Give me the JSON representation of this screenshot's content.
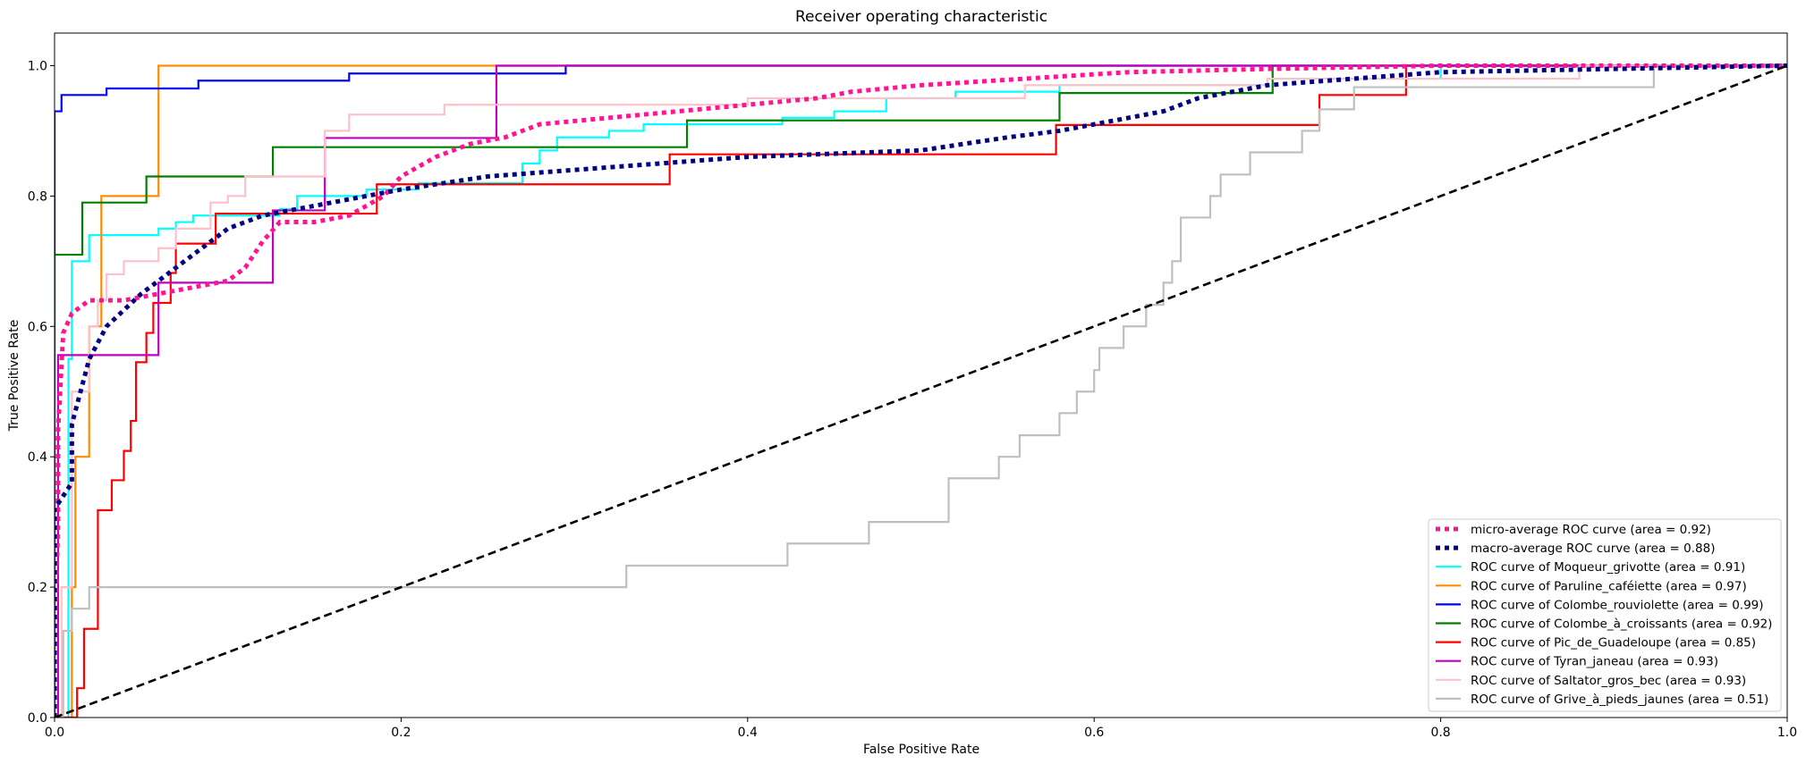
{
  "chart_data": {
    "type": "line",
    "title": "Receiver operating characteristic",
    "xlabel": "False Positive Rate",
    "ylabel": "True Positive Rate",
    "xlim": [
      0.0,
      1.0
    ],
    "ylim": [
      0.0,
      1.05
    ],
    "x_ticks": [
      "0.0",
      "0.2",
      "0.4",
      "0.6",
      "0.8",
      "1.0"
    ],
    "y_ticks": [
      "0.0",
      "0.2",
      "0.4",
      "0.6",
      "0.8",
      "1.0"
    ],
    "grid": false,
    "legend_position": "lower right",
    "series": [
      {
        "name": "micro-average ROC curve (area = 0.92)",
        "color": "#ff1493",
        "style": "dotted",
        "points": [
          [
            0,
            0
          ],
          [
            0,
            0.1
          ],
          [
            0.002,
            0.3
          ],
          [
            0.002,
            0.44
          ],
          [
            0.005,
            0.59
          ],
          [
            0.01,
            0.62
          ],
          [
            0.02,
            0.64
          ],
          [
            0.04,
            0.64
          ],
          [
            0.06,
            0.65
          ],
          [
            0.08,
            0.66
          ],
          [
            0.1,
            0.67
          ],
          [
            0.11,
            0.69
          ],
          [
            0.12,
            0.73
          ],
          [
            0.13,
            0.76
          ],
          [
            0.15,
            0.76
          ],
          [
            0.17,
            0.77
          ],
          [
            0.19,
            0.8
          ],
          [
            0.2,
            0.83
          ],
          [
            0.22,
            0.86
          ],
          [
            0.24,
            0.88
          ],
          [
            0.26,
            0.89
          ],
          [
            0.28,
            0.91
          ],
          [
            0.32,
            0.92
          ],
          [
            0.36,
            0.93
          ],
          [
            0.4,
            0.94
          ],
          [
            0.44,
            0.95
          ],
          [
            0.46,
            0.96
          ],
          [
            0.5,
            0.97
          ],
          [
            0.56,
            0.98
          ],
          [
            0.62,
            0.99
          ],
          [
            0.7,
            0.995
          ],
          [
            0.8,
            1.0
          ],
          [
            1.0,
            1.0
          ]
        ]
      },
      {
        "name": "macro-average ROC curve (area = 0.88)",
        "color": "#000080",
        "style": "dotted",
        "points": [
          [
            0,
            0
          ],
          [
            0,
            0.32
          ],
          [
            0.01,
            0.36
          ],
          [
            0.01,
            0.45
          ],
          [
            0.02,
            0.55
          ],
          [
            0.03,
            0.6
          ],
          [
            0.05,
            0.65
          ],
          [
            0.07,
            0.69
          ],
          [
            0.09,
            0.73
          ],
          [
            0.1,
            0.75
          ],
          [
            0.12,
            0.77
          ],
          [
            0.16,
            0.79
          ],
          [
            0.2,
            0.81
          ],
          [
            0.25,
            0.83
          ],
          [
            0.3,
            0.84
          ],
          [
            0.35,
            0.85
          ],
          [
            0.4,
            0.86
          ],
          [
            0.5,
            0.87
          ],
          [
            0.55,
            0.89
          ],
          [
            0.58,
            0.9
          ],
          [
            0.6,
            0.91
          ],
          [
            0.64,
            0.93
          ],
          [
            0.66,
            0.95
          ],
          [
            0.7,
            0.97
          ],
          [
            0.75,
            0.98
          ],
          [
            0.8,
            0.99
          ],
          [
            1.0,
            1.0
          ]
        ]
      },
      {
        "name": "ROC curve of Moqueur_grivotte (area = 0.91)",
        "color": "#00ffff",
        "style": "solid",
        "points": [
          [
            0,
            0
          ],
          [
            0.008,
            0
          ],
          [
            0.008,
            0.55
          ],
          [
            0.01,
            0.55
          ],
          [
            0.01,
            0.7
          ],
          [
            0.02,
            0.7
          ],
          [
            0.02,
            0.74
          ],
          [
            0.06,
            0.74
          ],
          [
            0.06,
            0.75
          ],
          [
            0.07,
            0.75
          ],
          [
            0.07,
            0.76
          ],
          [
            0.08,
            0.76
          ],
          [
            0.08,
            0.77
          ],
          [
            0.13,
            0.77
          ],
          [
            0.13,
            0.78
          ],
          [
            0.14,
            0.78
          ],
          [
            0.14,
            0.8
          ],
          [
            0.18,
            0.8
          ],
          [
            0.18,
            0.81
          ],
          [
            0.21,
            0.81
          ],
          [
            0.21,
            0.82
          ],
          [
            0.27,
            0.82
          ],
          [
            0.27,
            0.85
          ],
          [
            0.28,
            0.85
          ],
          [
            0.28,
            0.87
          ],
          [
            0.29,
            0.87
          ],
          [
            0.29,
            0.89
          ],
          [
            0.32,
            0.89
          ],
          [
            0.32,
            0.9
          ],
          [
            0.34,
            0.9
          ],
          [
            0.34,
            0.91
          ],
          [
            0.42,
            0.91
          ],
          [
            0.42,
            0.92
          ],
          [
            0.45,
            0.92
          ],
          [
            0.45,
            0.93
          ],
          [
            0.48,
            0.93
          ],
          [
            0.48,
            0.95
          ],
          [
            0.52,
            0.95
          ],
          [
            0.52,
            0.96
          ],
          [
            0.58,
            0.96
          ],
          [
            0.58,
            0.97
          ],
          [
            0.7,
            0.97
          ],
          [
            0.7,
            0.98
          ],
          [
            0.8,
            0.98
          ],
          [
            0.8,
            1.0
          ],
          [
            1.0,
            1.0
          ]
        ]
      },
      {
        "name": "ROC curve of Paruline_caféiette (area = 0.97)",
        "color": "#ff8c00",
        "style": "solid",
        "points": [
          [
            0,
            0
          ],
          [
            0.01,
            0
          ],
          [
            0.01,
            0.2
          ],
          [
            0.012,
            0.2
          ],
          [
            0.012,
            0.4
          ],
          [
            0.02,
            0.4
          ],
          [
            0.02,
            0.6
          ],
          [
            0.027,
            0.6
          ],
          [
            0.027,
            0.8
          ],
          [
            0.06,
            0.8
          ],
          [
            0.06,
            1.0
          ],
          [
            1.0,
            1.0
          ]
        ]
      },
      {
        "name": "ROC curve of Colombe_rouviolette (area = 0.99)",
        "color": "#0000ff",
        "style": "solid",
        "points": [
          [
            0,
            0
          ],
          [
            0,
            0.93
          ],
          [
            0.004,
            0.93
          ],
          [
            0.004,
            0.955
          ],
          [
            0.03,
            0.955
          ],
          [
            0.03,
            0.965
          ],
          [
            0.083,
            0.965
          ],
          [
            0.083,
            0.977
          ],
          [
            0.17,
            0.977
          ],
          [
            0.17,
            0.988
          ],
          [
            0.295,
            0.988
          ],
          [
            0.295,
            1.0
          ],
          [
            1.0,
            1.0
          ]
        ]
      },
      {
        "name": "ROC curve of Colombe_à_croissants (area = 0.92)",
        "color": "#008000",
        "style": "solid",
        "points": [
          [
            0,
            0
          ],
          [
            0,
            0.71
          ],
          [
            0.016,
            0.71
          ],
          [
            0.016,
            0.79
          ],
          [
            0.053,
            0.79
          ],
          [
            0.053,
            0.83
          ],
          [
            0.126,
            0.83
          ],
          [
            0.126,
            0.875
          ],
          [
            0.365,
            0.875
          ],
          [
            0.365,
            0.916
          ],
          [
            0.58,
            0.916
          ],
          [
            0.58,
            0.958
          ],
          [
            0.703,
            0.958
          ],
          [
            0.703,
            1.0
          ],
          [
            1.0,
            1.0
          ]
        ]
      },
      {
        "name": "ROC curve of Pic_de_Guadeloupe (area = 0.85)",
        "color": "#ff0000",
        "style": "solid",
        "points": [
          [
            0,
            0
          ],
          [
            0.013,
            0
          ],
          [
            0.013,
            0.045
          ],
          [
            0.017,
            0.045
          ],
          [
            0.017,
            0.136
          ],
          [
            0.025,
            0.136
          ],
          [
            0.025,
            0.318
          ],
          [
            0.033,
            0.318
          ],
          [
            0.033,
            0.364
          ],
          [
            0.04,
            0.364
          ],
          [
            0.04,
            0.409
          ],
          [
            0.044,
            0.409
          ],
          [
            0.044,
            0.455
          ],
          [
            0.047,
            0.455
          ],
          [
            0.047,
            0.545
          ],
          [
            0.053,
            0.545
          ],
          [
            0.053,
            0.59
          ],
          [
            0.057,
            0.59
          ],
          [
            0.057,
            0.636
          ],
          [
            0.067,
            0.636
          ],
          [
            0.067,
            0.682
          ],
          [
            0.07,
            0.682
          ],
          [
            0.07,
            0.727
          ],
          [
            0.093,
            0.727
          ],
          [
            0.093,
            0.773
          ],
          [
            0.186,
            0.773
          ],
          [
            0.186,
            0.818
          ],
          [
            0.355,
            0.818
          ],
          [
            0.355,
            0.864
          ],
          [
            0.578,
            0.864
          ],
          [
            0.578,
            0.909
          ],
          [
            0.73,
            0.909
          ],
          [
            0.73,
            0.955
          ],
          [
            0.78,
            0.955
          ],
          [
            0.78,
            1.0
          ],
          [
            1.0,
            1.0
          ]
        ]
      },
      {
        "name": "ROC curve of Tyran_janeau (area = 0.93)",
        "color": "#bf00bf",
        "style": "solid",
        "points": [
          [
            0,
            0
          ],
          [
            0.002,
            0
          ],
          [
            0.002,
            0.556
          ],
          [
            0.06,
            0.556
          ],
          [
            0.06,
            0.667
          ],
          [
            0.126,
            0.667
          ],
          [
            0.126,
            0.778
          ],
          [
            0.156,
            0.778
          ],
          [
            0.156,
            0.889
          ],
          [
            0.255,
            0.889
          ],
          [
            0.255,
            1.0
          ],
          [
            1.0,
            1.0
          ]
        ]
      },
      {
        "name": "ROC curve of Saltator_gros_bec (area = 0.93)",
        "color": "#ffc0cb",
        "style": "solid",
        "points": [
          [
            0,
            0
          ],
          [
            0.004,
            0
          ],
          [
            0.004,
            0.2
          ],
          [
            0.01,
            0.2
          ],
          [
            0.01,
            0.5
          ],
          [
            0.02,
            0.5
          ],
          [
            0.02,
            0.6
          ],
          [
            0.025,
            0.6
          ],
          [
            0.025,
            0.64
          ],
          [
            0.03,
            0.64
          ],
          [
            0.03,
            0.68
          ],
          [
            0.04,
            0.68
          ],
          [
            0.04,
            0.7
          ],
          [
            0.06,
            0.7
          ],
          [
            0.06,
            0.72
          ],
          [
            0.07,
            0.72
          ],
          [
            0.07,
            0.75
          ],
          [
            0.09,
            0.75
          ],
          [
            0.09,
            0.79
          ],
          [
            0.1,
            0.79
          ],
          [
            0.1,
            0.8
          ],
          [
            0.11,
            0.8
          ],
          [
            0.11,
            0.83
          ],
          [
            0.156,
            0.83
          ],
          [
            0.156,
            0.9
          ],
          [
            0.17,
            0.9
          ],
          [
            0.17,
            0.925
          ],
          [
            0.225,
            0.925
          ],
          [
            0.225,
            0.94
          ],
          [
            0.4,
            0.94
          ],
          [
            0.4,
            0.95
          ],
          [
            0.56,
            0.95
          ],
          [
            0.56,
            0.97
          ],
          [
            0.7,
            0.97
          ],
          [
            0.7,
            0.98
          ],
          [
            0.88,
            0.98
          ],
          [
            0.88,
            1.0
          ],
          [
            1.0,
            1.0
          ]
        ]
      },
      {
        "name": "ROC curve of Grive_à_pieds_jaunes (area = 0.51)",
        "color": "#bfbfbf",
        "style": "solid",
        "points": [
          [
            0,
            0
          ],
          [
            0.005,
            0
          ],
          [
            0.005,
            0.133
          ],
          [
            0.01,
            0.133
          ],
          [
            0.01,
            0.167
          ],
          [
            0.02,
            0.167
          ],
          [
            0.02,
            0.2
          ],
          [
            0.33,
            0.2
          ],
          [
            0.33,
            0.233
          ],
          [
            0.423,
            0.233
          ],
          [
            0.423,
            0.267
          ],
          [
            0.47,
            0.267
          ],
          [
            0.47,
            0.3
          ],
          [
            0.516,
            0.3
          ],
          [
            0.516,
            0.367
          ],
          [
            0.545,
            0.367
          ],
          [
            0.545,
            0.4
          ],
          [
            0.557,
            0.4
          ],
          [
            0.557,
            0.433
          ],
          [
            0.58,
            0.433
          ],
          [
            0.58,
            0.467
          ],
          [
            0.59,
            0.467
          ],
          [
            0.59,
            0.5
          ],
          [
            0.6,
            0.5
          ],
          [
            0.6,
            0.533
          ],
          [
            0.603,
            0.533
          ],
          [
            0.603,
            0.567
          ],
          [
            0.617,
            0.567
          ],
          [
            0.617,
            0.6
          ],
          [
            0.63,
            0.6
          ],
          [
            0.63,
            0.633
          ],
          [
            0.64,
            0.633
          ],
          [
            0.64,
            0.667
          ],
          [
            0.645,
            0.667
          ],
          [
            0.645,
            0.7
          ],
          [
            0.65,
            0.7
          ],
          [
            0.65,
            0.767
          ],
          [
            0.667,
            0.767
          ],
          [
            0.667,
            0.8
          ],
          [
            0.673,
            0.8
          ],
          [
            0.673,
            0.833
          ],
          [
            0.69,
            0.833
          ],
          [
            0.69,
            0.867
          ],
          [
            0.72,
            0.867
          ],
          [
            0.72,
            0.9
          ],
          [
            0.73,
            0.9
          ],
          [
            0.73,
            0.933
          ],
          [
            0.75,
            0.933
          ],
          [
            0.75,
            0.967
          ],
          [
            0.923,
            0.967
          ],
          [
            0.923,
            1.0
          ],
          [
            1.0,
            1.0
          ]
        ]
      }
    ],
    "reference_line": {
      "color": "#000000",
      "style": "dashed",
      "points": [
        [
          0,
          0
        ],
        [
          1,
          1
        ]
      ]
    }
  }
}
